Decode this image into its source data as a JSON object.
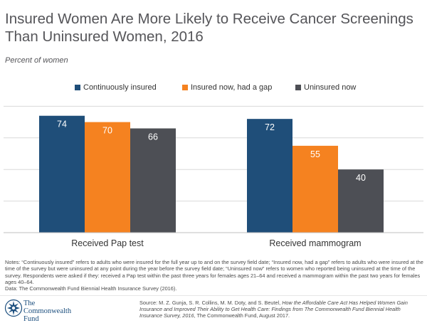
{
  "title": "Insured Women Are More Likely to Receive Cancer Screenings Than Uninsured Women, 2016",
  "subtitle": "Percent of women",
  "colors": {
    "continuously_insured": "#1f4e79",
    "gap": "#f58220",
    "uninsured": "#4d4f55",
    "gridline": "#d9d9d9",
    "logo": "#1b4e7e"
  },
  "chart_data": {
    "type": "bar",
    "title": "Insured Women Are More Likely to Receive Cancer Screenings Than Uninsured Women, 2016",
    "ylabel": "Percent of women",
    "xlabel": "",
    "ylim": [
      0,
      100
    ],
    "grid": true,
    "legend_position": "top",
    "categories": [
      "Received Pap test",
      "Received mammogram"
    ],
    "series": [
      {
        "name": "Continuously insured",
        "color": "#1f4e79",
        "values": [
          74,
          72
        ]
      },
      {
        "name": "Insured now, had a gap",
        "color": "#f58220",
        "values": [
          70,
          55
        ]
      },
      {
        "name": "Uninsured now",
        "color": "#4d4f55",
        "values": [
          66,
          40
        ]
      }
    ]
  },
  "notes": {
    "text": "Notes: “Continuously insured” refers to adults who were insured for the full year up to and on the survey field date; “Insured now, had a gap” refers to adults who were insured at the time of the survey but were uninsured at any point during the year before the survey field date; “Uninsured now” refers to women who reported being uninsured at the time of the survey. Respondents were asked if they: received a Pap test within the past three years for females ages 21–64 and received a mammogram within the past two years for females ages 40–64.",
    "data_line": "Data: The Commonwealth Fund Biennial Health Insurance Survey (2016)."
  },
  "source": {
    "prefix": "Source: M. Z. Gunja, S. R. Collins, M. M. Doty, and S. Beutel, ",
    "italic": "How the Affordable Care Act Has Helped Women Gain Insurance and Improved Their Ability to Get Health Care: Findings from The Commonwealth Fund Biennial Health Insurance Survey, 2016",
    "suffix": ", The Commonwealth Fund, August 2017."
  },
  "logo": {
    "line1": "The",
    "line2": "Commonwealth",
    "line3": "Fund"
  }
}
